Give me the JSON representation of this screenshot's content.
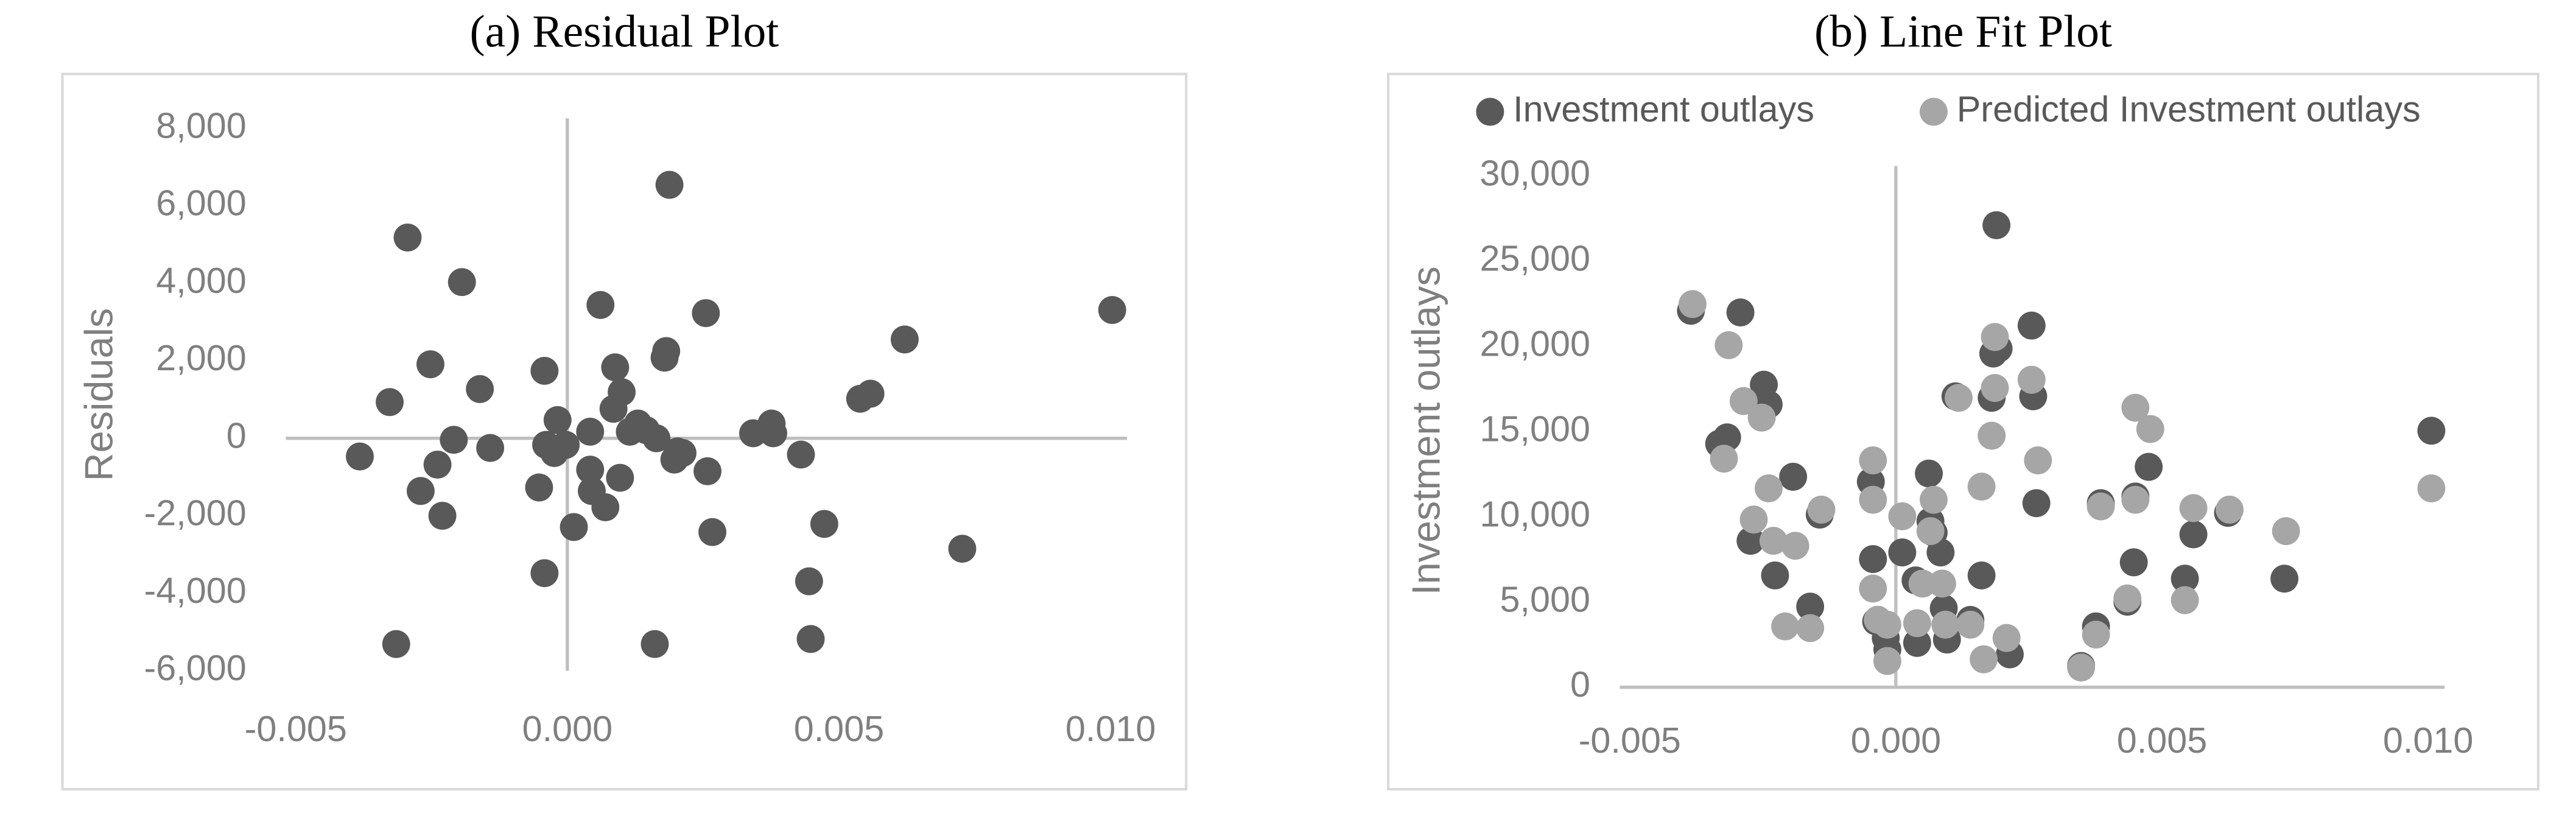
{
  "chart_data": [
    {
      "type": "scatter",
      "title": "(a) Residual Plot",
      "y_label": "Residuals",
      "xlim": [
        -0.005,
        0.01
      ],
      "xticks": [
        -0.005,
        {
          "value": 0,
          "label": "0.000"
        },
        0.005,
        {
          "value": 0.01,
          "label": "0.010"
        }
      ],
      "ylim": [
        -6000,
        8000
      ],
      "yticks": [
        {
          "value": -6000,
          "label": "-6,000"
        },
        {
          "value": -4000,
          "label": "-4,000"
        },
        {
          "value": -2000,
          "label": "-2,000"
        },
        0,
        {
          "value": 2000,
          "label": "2,000"
        },
        {
          "value": 4000,
          "label": "4,000"
        },
        {
          "value": 6000,
          "label": "6,000"
        },
        {
          "value": 8000,
          "label": "8,000"
        }
      ],
      "series": [
        {
          "color": "#595959",
          "x": [
            -0.00382,
            -0.00294,
            -0.00327,
            -0.00315,
            -0.00194,
            -0.00252,
            -0.0027,
            -0.00239,
            -0.0023,
            -0.00209,
            -0.00161,
            -0.00142,
            -0.00042,
            -0.00042,
            -0.00052,
            -0.00039,
            -0.00024,
            -0.00018,
            -3e-05,
            0.00012,
            0.00042,
            0.00042,
            0.00045,
            0.00061,
            0.0007,
            0.00088,
            0.001,
            0.00085,
            0.00097,
            0.00115,
            0.0013,
            0.00145,
            0.00164,
            0.00161,
            0.00188,
            0.00182,
            0.00179,
            0.00203,
            0.00197,
            0.00212,
            0.00255,
            0.00258,
            0.00267,
            0.00342,
            0.00376,
            0.00379,
            0.0043,
            0.00445,
            0.00448,
            0.00473,
            0.00539,
            0.00558,
            0.00621,
            0.00727,
            0.01003
          ],
          "values": [
            -470,
            5180,
            934,
            -5310,
            4030,
            1910,
            -1360,
            -680,
            -2000,
            -40,
            1270,
            -250,
            1740,
            -3480,
            -1270,
            -170,
            -380,
            470,
            -170,
            -2290,
            170,
            -810,
            -1360,
            3440,
            -1780,
            1830,
            1190,
            760,
            -1020,
            170,
            380,
            210,
            0,
            -5310,
            6540,
            2250,
            2080,
            -340,
            -550,
            -380,
            3230,
            -850,
            -2420,
            130,
            380,
            130,
            -420,
            -3690,
            -5180,
            -2210,
            1020,
            1150,
            2550,
            -2850,
            3310
          ]
        }
      ]
    },
    {
      "type": "scatter",
      "title": "(b) Line Fit Plot",
      "y_label": "Investment outlays",
      "xlim": [
        -0.005,
        0.01
      ],
      "xticks": [
        -0.005,
        {
          "value": 0,
          "label": "0.000"
        },
        0.005,
        {
          "value": 0.01,
          "label": "0.010"
        }
      ],
      "ylim": [
        0,
        30000
      ],
      "yticks": [
        0,
        {
          "value": 5000,
          "label": "5,000"
        },
        {
          "value": 10000,
          "label": "10,000"
        },
        {
          "value": 15000,
          "label": "15,000"
        },
        {
          "value": 20000,
          "label": "20,000"
        },
        {
          "value": 25000,
          "label": "25,000"
        },
        {
          "value": 30000,
          "label": "30,000"
        }
      ],
      "legend": "top",
      "series": [
        {
          "name": "Investment outlays",
          "color": "#595959",
          "x": [
            -0.00385,
            -0.00292,
            -0.00248,
            -0.00317,
            -0.00332,
            -0.00239,
            -0.00193,
            -0.00273,
            -0.00227,
            -0.00143,
            -0.00161,
            -0.00047,
            -0.00043,
            -0.00037,
            -0.00019,
            -0.00016,
            0.00012,
            0.00037,
            0.0004,
            0.00065,
            0.00062,
            0.00071,
            0.00084,
            0.0009,
            0.00096,
            0.00112,
            0.0014,
            0.00161,
            0.0018,
            0.00189,
            0.00183,
            0.00193,
            0.00214,
            0.00255,
            0.00258,
            0.00264,
            0.00348,
            0.00376,
            0.00385,
            0.00435,
            0.00447,
            0.0045,
            0.00475,
            0.00543,
            0.00559,
            0.00624,
            0.0073,
            0.01006
          ],
          "values": [
            22090,
            21990,
            17750,
            14660,
            14280,
            16590,
            12350,
            8590,
            6560,
            10130,
            4730,
            12060,
            7520,
            3860,
            2890,
            2220,
            7910,
            6270,
            2600,
            9740,
            12540,
            9070,
            7910,
            4630,
            2800,
            17070,
            3950,
            6560,
            16980,
            27110,
            19580,
            19870,
            1930,
            21220,
            17070,
            10800,
            1250,
            3570,
            10800,
            5020,
            7330,
            11190,
            12930,
            6370,
            8970,
            10230,
            6370,
            15050
          ]
        },
        {
          "name": "Predicted Investment outlays",
          "color": "#a6a6a6",
          "x": [
            -0.00382,
            -0.00323,
            -0.00314,
            -0.00286,
            -0.00252,
            -0.00267,
            -0.0023,
            -0.00239,
            -0.00189,
            -0.00208,
            -0.00161,
            -0.0014,
            -0.00043,
            -0.00043,
            -0.00043,
            -0.00034,
            -0.00016,
            -0.00016,
            0.00012,
            0.0004,
            0.0005,
            0.00065,
            0.00071,
            0.00087,
            0.00093,
            0.00118,
            0.0014,
            0.00161,
            0.00165,
            0.0018,
            0.00186,
            0.00186,
            0.00208,
            0.00255,
            0.00267,
            0.00348,
            0.00376,
            0.00385,
            0.00435,
            0.0045,
            0.0045,
            0.00478,
            0.00543,
            0.00559,
            0.00627,
            0.00733,
            0.01006
          ],
          "values": [
            22480,
            13410,
            20070,
            16790,
            15820,
            9840,
            8590,
            11670,
            8300,
            3570,
            3470,
            10420,
            13310,
            11000,
            5790,
            3960,
            3670,
            1540,
            10030,
            3760,
            6080,
            9160,
            11000,
            6080,
            3670,
            16980,
            3670,
            11770,
            1640,
            14760,
            20550,
            17560,
            2890,
            18040,
            13310,
            1160,
            3090,
            10610,
            5210,
            16400,
            11000,
            15150,
            5110,
            10510,
            10420,
            9160,
            11670
          ]
        }
      ]
    }
  ]
}
